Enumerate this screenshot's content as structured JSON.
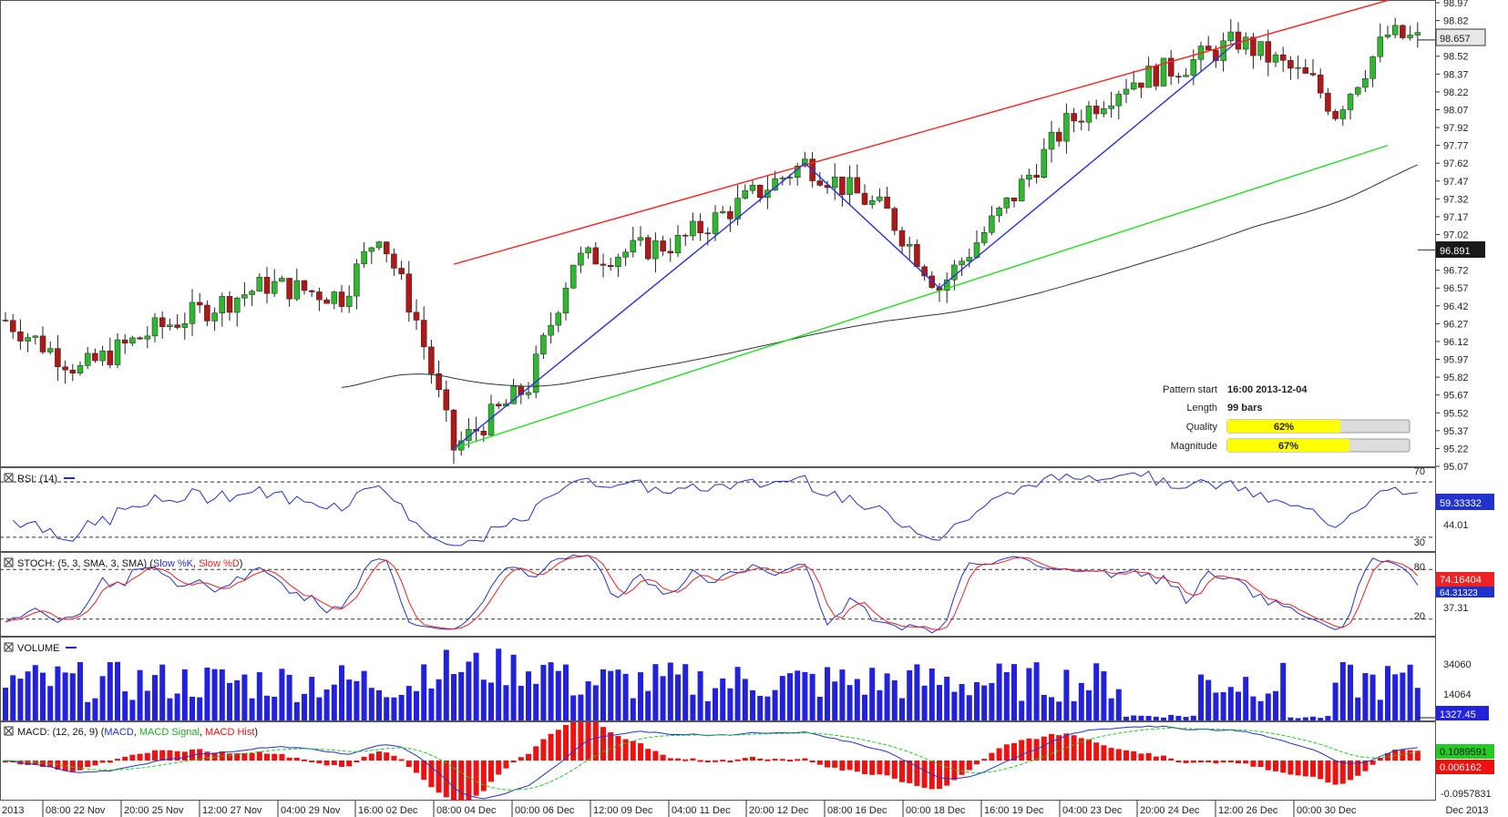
{
  "colors": {
    "up": "#2fb82f",
    "down": "#b01818",
    "resistance": "#ff2020",
    "support": "#22dd22",
    "zigzag": "#2a33dd",
    "sma": "#333333",
    "rsi": "#2233cc",
    "stoch_k": "#2233cc",
    "stoch_d": "#ee2222",
    "volume": "#2222dd",
    "macd": "#2233cc",
    "macd_signal": "#22cc22",
    "macd_hist": "#ee1111",
    "bar_fill": "#ffff00"
  },
  "chart_data": {
    "type": "candlestick",
    "main": {
      "y_ticks": [
        "98.97",
        "98.82",
        "98.67",
        "98.52",
        "98.37",
        "98.22",
        "98.07",
        "97.92",
        "97.77",
        "97.62",
        "97.47",
        "97.32",
        "97.17",
        "97.02",
        "96.87",
        "96.72",
        "96.57",
        "96.42",
        "96.27",
        "96.12",
        "95.97",
        "95.82",
        "95.67",
        "95.52",
        "95.37",
        "95.22",
        "95.07"
      ],
      "ylim": [
        95.07,
        98.97
      ],
      "last_price": "98.657",
      "sma_value": "96.891",
      "resistance_line": [
        [
          60,
          96.77
        ],
        [
          185,
          98.99
        ]
      ],
      "support_line": [
        [
          60,
          95.22
        ],
        [
          185,
          97.77
        ]
      ],
      "zigzag": [
        [
          60,
          95.22
        ],
        [
          107,
          97.62
        ],
        [
          125,
          96.57
        ],
        [
          165,
          98.65
        ]
      ]
    },
    "x_ticks": [
      "2013",
      "08:00 22 Nov",
      "20:00 25 Nov",
      "12:00 27 Nov",
      "04:00 29 Nov",
      "16:00 02 Dec",
      "08:00 04 Dec",
      "00:00 06 Dec",
      "12:00 09 Dec",
      "04:00 11 Dec",
      "20:00 12 Dec",
      "08:00 16 Dec",
      "00:00 18 Dec",
      "16:00 19 Dec",
      "04:00 23 Dec",
      "20:00 24 Dec",
      "12:00 26 Dec",
      "00:00 30 Dec",
      "Dec 2013"
    ],
    "pattern_info": {
      "pattern_start_label": "Pattern start",
      "pattern_start_value": "16:00 2013-12-04",
      "length_label": "Length",
      "length_value": "99 bars",
      "quality_label": "Quality",
      "quality_value": "62%",
      "quality_fraction": 0.62,
      "magnitude_label": "Magnitude",
      "magnitude_value": "67%",
      "magnitude_fraction": 0.67
    },
    "rsi": {
      "title": "RSI: (14)",
      "levels": [
        "70",
        "30"
      ],
      "tick": "44.01",
      "current": "59.33332"
    },
    "stoch": {
      "title_prefix": "STOCH: (5, 3, SMA, 3, SMA) (",
      "k_label": "Slow %K",
      "sep": ", ",
      "d_label": "Slow %D",
      "title_suffix": ")",
      "levels": [
        "80",
        "20"
      ],
      "tick": "37.31",
      "current_d": "74.16404",
      "current_k": "64.31323"
    },
    "volume": {
      "title": "VOLUME",
      "ticks": [
        "34060",
        "14064"
      ],
      "current": "1327.45"
    },
    "macd": {
      "title_prefix": "MACD: (12, 26, 9) (",
      "macd_label": "MACD",
      "sep": ", ",
      "signal_label": "MACD Signal",
      "hist_label": "MACD Hist",
      "title_suffix": ")",
      "current_macd": "0.1089591",
      "current_hist": "0.006162",
      "tick": "-0.0957831"
    }
  }
}
